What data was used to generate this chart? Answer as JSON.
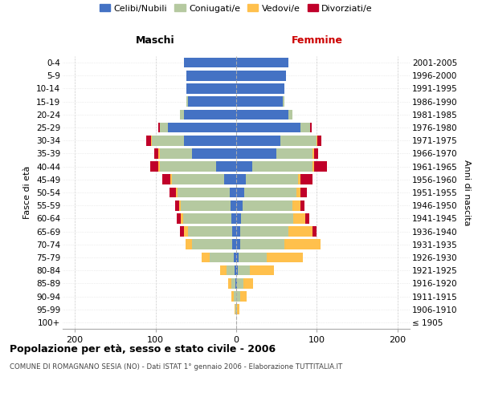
{
  "age_groups": [
    "100+",
    "95-99",
    "90-94",
    "85-89",
    "80-84",
    "75-79",
    "70-74",
    "65-69",
    "60-64",
    "55-59",
    "50-54",
    "45-49",
    "40-44",
    "35-39",
    "30-34",
    "25-29",
    "20-24",
    "15-19",
    "10-14",
    "5-9",
    "0-4"
  ],
  "birth_years": [
    "≤ 1905",
    "1906-1910",
    "1911-1915",
    "1916-1920",
    "1921-1925",
    "1926-1930",
    "1931-1935",
    "1936-1940",
    "1941-1945",
    "1946-1950",
    "1951-1955",
    "1956-1960",
    "1961-1965",
    "1966-1970",
    "1971-1975",
    "1976-1980",
    "1981-1985",
    "1986-1990",
    "1991-1995",
    "1996-2000",
    "2001-2005"
  ],
  "male": {
    "celibi": [
      0,
      0,
      0,
      1,
      2,
      3,
      5,
      5,
      6,
      7,
      8,
      15,
      25,
      55,
      65,
      85,
      65,
      60,
      62,
      62,
      65
    ],
    "coniugati": [
      0,
      1,
      3,
      5,
      10,
      30,
      50,
      55,
      60,
      62,
      65,
      65,
      70,
      40,
      40,
      10,
      5,
      2,
      0,
      0,
      0
    ],
    "vedovi": [
      0,
      1,
      3,
      4,
      8,
      10,
      8,
      5,
      3,
      2,
      2,
      2,
      2,
      2,
      1,
      0,
      0,
      0,
      0,
      0,
      0
    ],
    "divorziati": [
      0,
      0,
      0,
      0,
      0,
      0,
      0,
      5,
      5,
      5,
      8,
      10,
      10,
      5,
      5,
      2,
      0,
      0,
      0,
      0,
      0
    ]
  },
  "female": {
    "nubili": [
      0,
      0,
      0,
      1,
      2,
      3,
      5,
      5,
      6,
      8,
      10,
      12,
      20,
      50,
      55,
      80,
      65,
      58,
      60,
      62,
      65
    ],
    "coniugate": [
      0,
      1,
      5,
      8,
      15,
      35,
      55,
      60,
      65,
      62,
      65,
      65,
      75,
      45,
      45,
      12,
      5,
      2,
      0,
      0,
      0
    ],
    "vedove": [
      0,
      3,
      8,
      12,
      30,
      45,
      45,
      30,
      15,
      10,
      5,
      3,
      2,
      2,
      1,
      0,
      0,
      0,
      0,
      0,
      0
    ],
    "divorziate": [
      0,
      0,
      0,
      0,
      0,
      0,
      0,
      5,
      5,
      5,
      8,
      15,
      15,
      5,
      5,
      2,
      0,
      0,
      0,
      0,
      0
    ]
  },
  "colors": {
    "celibi": "#4472c4",
    "coniugati": "#b5c9a0",
    "vedovi": "#ffc04c",
    "divorziati": "#c0002a"
  },
  "xlim": [
    -215,
    215
  ],
  "xticks": [
    -200,
    -100,
    0,
    100,
    200
  ],
  "xticklabels": [
    "200",
    "100",
    "0",
    "100",
    "200"
  ],
  "title_main": "Popolazione per età, sesso e stato civile - 2006",
  "title_sub": "COMUNE DI ROMAGNANO SESIA (NO) - Dati ISTAT 1° gennaio 2006 - Elaborazione TUTTITALIA.IT",
  "ylabel_left": "Fasce di età",
  "ylabel_right": "Anni di nascita",
  "label_maschi": "Maschi",
  "label_femmine": "Femmine",
  "legend_labels": [
    "Celibi/Nubili",
    "Coniugati/e",
    "Vedovi/e",
    "Divorziati/e"
  ]
}
